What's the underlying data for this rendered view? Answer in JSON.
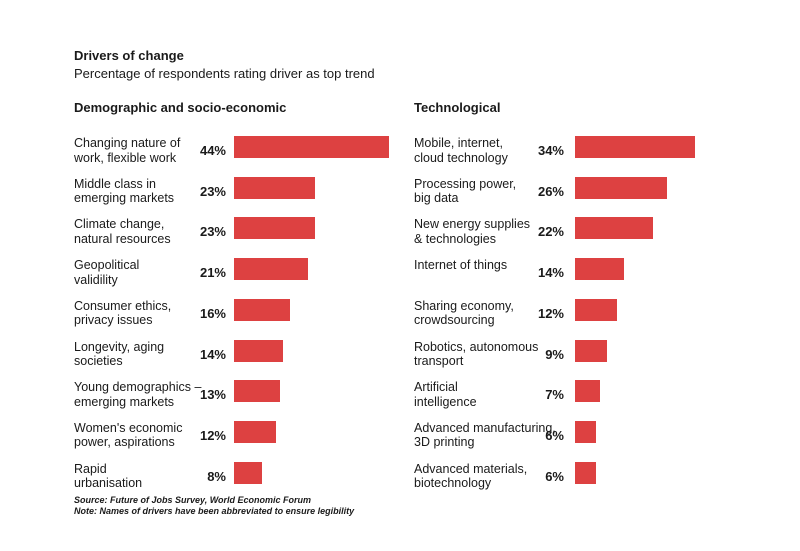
{
  "title": "Drivers of change",
  "subtitle": "Percentage of respondents rating driver as top trend",
  "colors": {
    "bar": "#dd4141",
    "text": "#1a1a1a"
  },
  "chart_data": [
    {
      "type": "bar",
      "orientation": "horizontal",
      "title": "Demographic and socio-economic",
      "unit": "%",
      "categories": [
        "Changing nature of\nwork, flexible work",
        "Middle class in\nemerging markets",
        "Climate change,\nnatural resources",
        "Geopolitical\nvalidility",
        "Consumer ethics,\nprivacy issues",
        "Longevity, aging\nsocieties",
        "Young demographics –\nemerging markets",
        "Women's economic\npower, aspirations",
        "Rapid\nurbanisation"
      ],
      "values": [
        44,
        23,
        23,
        21,
        16,
        14,
        13,
        12,
        8
      ],
      "value_labels": [
        "44%",
        "23%",
        "23%",
        "21%",
        "16%",
        "14%",
        "13%",
        "12%",
        "8%"
      ]
    },
    {
      "type": "bar",
      "orientation": "horizontal",
      "title": "Technological",
      "unit": "%",
      "categories": [
        "Mobile, internet,\ncloud technology",
        "Processing power,\nbig data",
        "New energy supplies\n& technologies",
        "Internet of things",
        "Sharing economy,\ncrowdsourcing",
        "Robotics, autonomous\ntransport",
        "Artificial\nintelligence",
        "Advanced manufacturing,\n3D printing",
        "Advanced materials,\nbiotechnology"
      ],
      "values": [
        34,
        26,
        22,
        14,
        12,
        9,
        7,
        6,
        6
      ],
      "value_labels": [
        "34%",
        "26%",
        "22%",
        "14%",
        "12%",
        "9%",
        "7%",
        "6%",
        "6%"
      ]
    }
  ],
  "source": "Source: Future of Jobs Survey, World Economic Forum",
  "note": "Note: Names of drivers have been abbreviated to ensure legibility"
}
